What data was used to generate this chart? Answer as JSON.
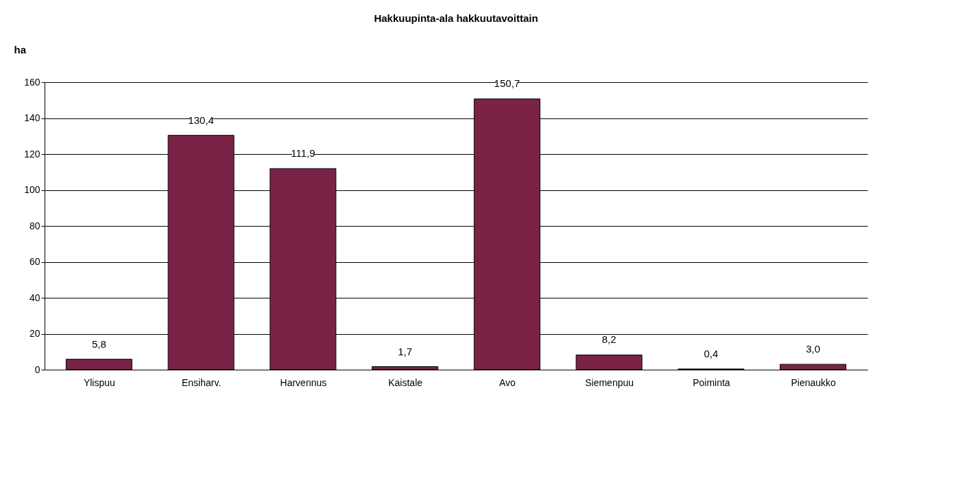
{
  "chart_data": {
    "type": "bar",
    "title": "Hakkuupinta-ala hakkuutavoittain",
    "ylabel": "ha",
    "categories": [
      "Ylispuu",
      "Ensiharv.",
      "Harvennus",
      "Kaistale",
      "Avo",
      "Siemenpuu",
      "Poiminta",
      "Pienaukko"
    ],
    "values": [
      5.8,
      130.4,
      111.9,
      1.7,
      150.7,
      8.2,
      0.4,
      3.0
    ],
    "value_labels": [
      "5,8",
      "130,4",
      "111,9",
      "1,7",
      "150,7",
      "8,2",
      "0,4",
      "3,0"
    ],
    "color": "#7b2346",
    "ylim": [
      0,
      160
    ],
    "yticks": [
      0,
      20,
      40,
      60,
      80,
      100,
      120,
      140,
      160
    ],
    "grid": "y"
  }
}
